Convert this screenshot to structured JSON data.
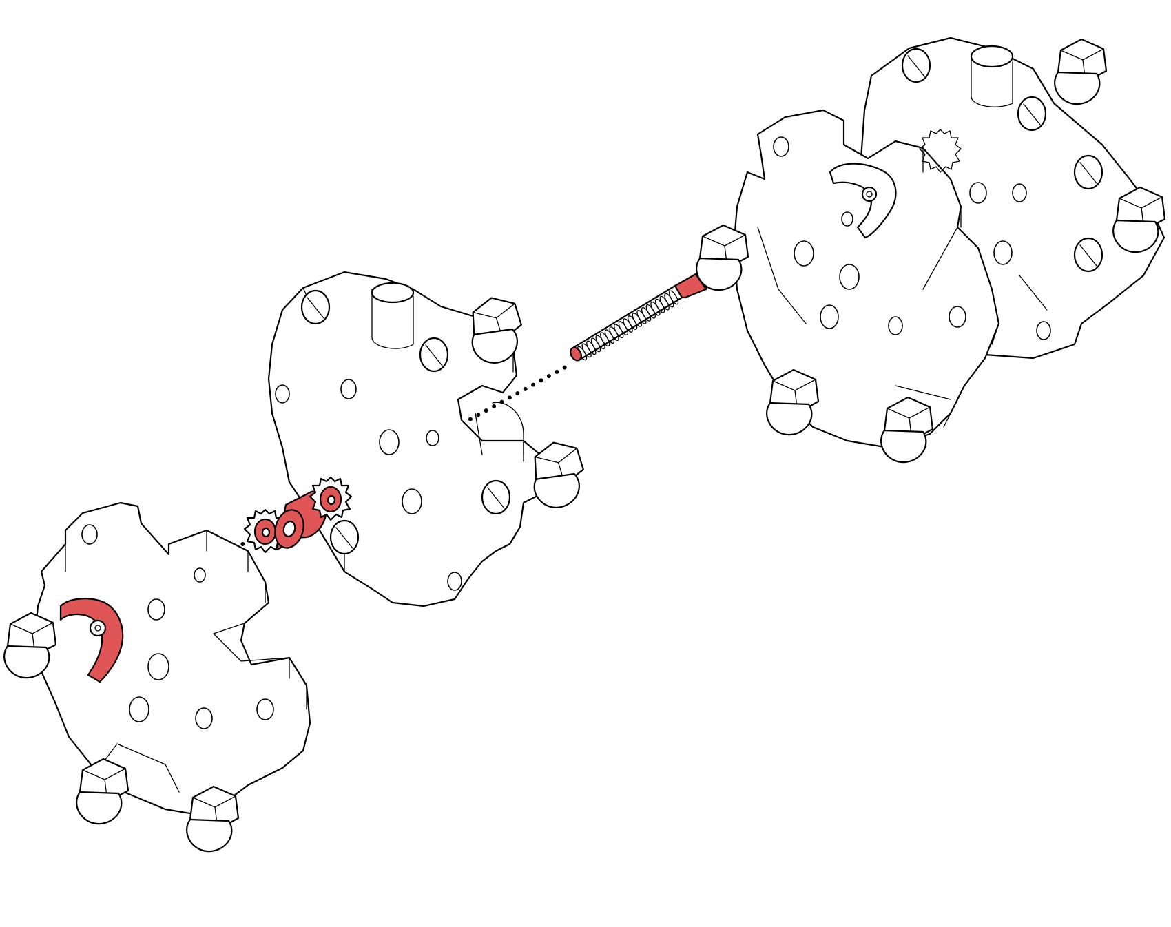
{
  "highlight_color": "#e05555",
  "line_color": "#000000",
  "background_color": "#ffffff",
  "parts": [
    {
      "name": "front-hub-plate",
      "highlighted": false
    },
    {
      "name": "middle-hub-plate",
      "highlighted": false
    },
    {
      "name": "rear-wheel-assembly",
      "highlighted": false
    },
    {
      "name": "wing-nut",
      "highlighted": true
    },
    {
      "name": "star-washer-front",
      "highlighted": true
    },
    {
      "name": "spacer-tube",
      "highlighted": true
    },
    {
      "name": "star-washer-rear",
      "highlighted": true
    },
    {
      "name": "threaded-axle-rod",
      "highlighted": true
    }
  ]
}
